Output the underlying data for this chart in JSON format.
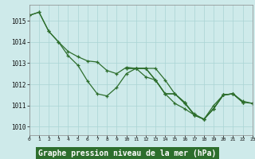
{
  "x": [
    0,
    1,
    2,
    3,
    4,
    5,
    6,
    7,
    8,
    9,
    10,
    11,
    12,
    13,
    14,
    15,
    16,
    17,
    18,
    19,
    20,
    21,
    22,
    23
  ],
  "lines": [
    [
      1015.25,
      1015.4,
      1014.5,
      1014.0,
      1013.35,
      1012.9,
      1012.15,
      1011.55,
      1011.45,
      1011.85,
      1012.5,
      1012.75,
      1012.75,
      1012.2,
      1011.55,
      1011.55,
      1011.15,
      1010.55,
      1010.35,
      1010.85,
      1011.5,
      1011.55,
      1011.15,
      null
    ],
    [
      1015.25,
      1015.4,
      1014.5,
      1014.0,
      1013.55,
      1013.3,
      1013.1,
      1013.05,
      1012.65,
      1012.5,
      1012.8,
      1012.75,
      1012.75,
      1012.75,
      1012.2,
      1011.55,
      1011.15,
      1010.55,
      1010.35,
      1010.85,
      1011.5,
      1011.55,
      1011.15,
      null
    ],
    [
      null,
      null,
      null,
      null,
      null,
      null,
      null,
      null,
      null,
      null,
      1012.75,
      1012.75,
      1012.75,
      1012.2,
      1011.55,
      1011.1,
      1010.85,
      1010.55,
      1010.35,
      1010.85,
      1011.5,
      1011.55,
      1011.15,
      1011.1
    ],
    [
      null,
      null,
      null,
      null,
      null,
      null,
      null,
      null,
      null,
      null,
      1012.75,
      1012.75,
      1012.35,
      1012.2,
      1011.55,
      1011.55,
      1011.1,
      1010.6,
      1010.35,
      1011.0,
      1011.5,
      1011.55,
      1011.2,
      1011.1
    ]
  ],
  "bg_color": "#ceeaea",
  "grid_color": "#aad4d4",
  "line_color": "#2d6e2d",
  "markersize": 3.5,
  "linewidth": 0.9,
  "xlabel": "Graphe pression niveau de la mer (hPa)",
  "xlabel_bg": "#2d6e2d",
  "xlabel_color": "#ffffff",
  "xlabel_fontsize": 7,
  "ytick_labels": [
    "1010",
    "1011",
    "1012",
    "1013",
    "1014",
    "1015"
  ],
  "ytick_vals": [
    1010,
    1011,
    1012,
    1013,
    1014,
    1015
  ],
  "xtick_vals": [
    0,
    1,
    2,
    3,
    4,
    5,
    6,
    7,
    8,
    9,
    10,
    11,
    12,
    13,
    14,
    15,
    16,
    17,
    18,
    19,
    20,
    21,
    22,
    23
  ],
  "ylim": [
    1009.6,
    1015.75
  ],
  "xlim": [
    0,
    23
  ]
}
